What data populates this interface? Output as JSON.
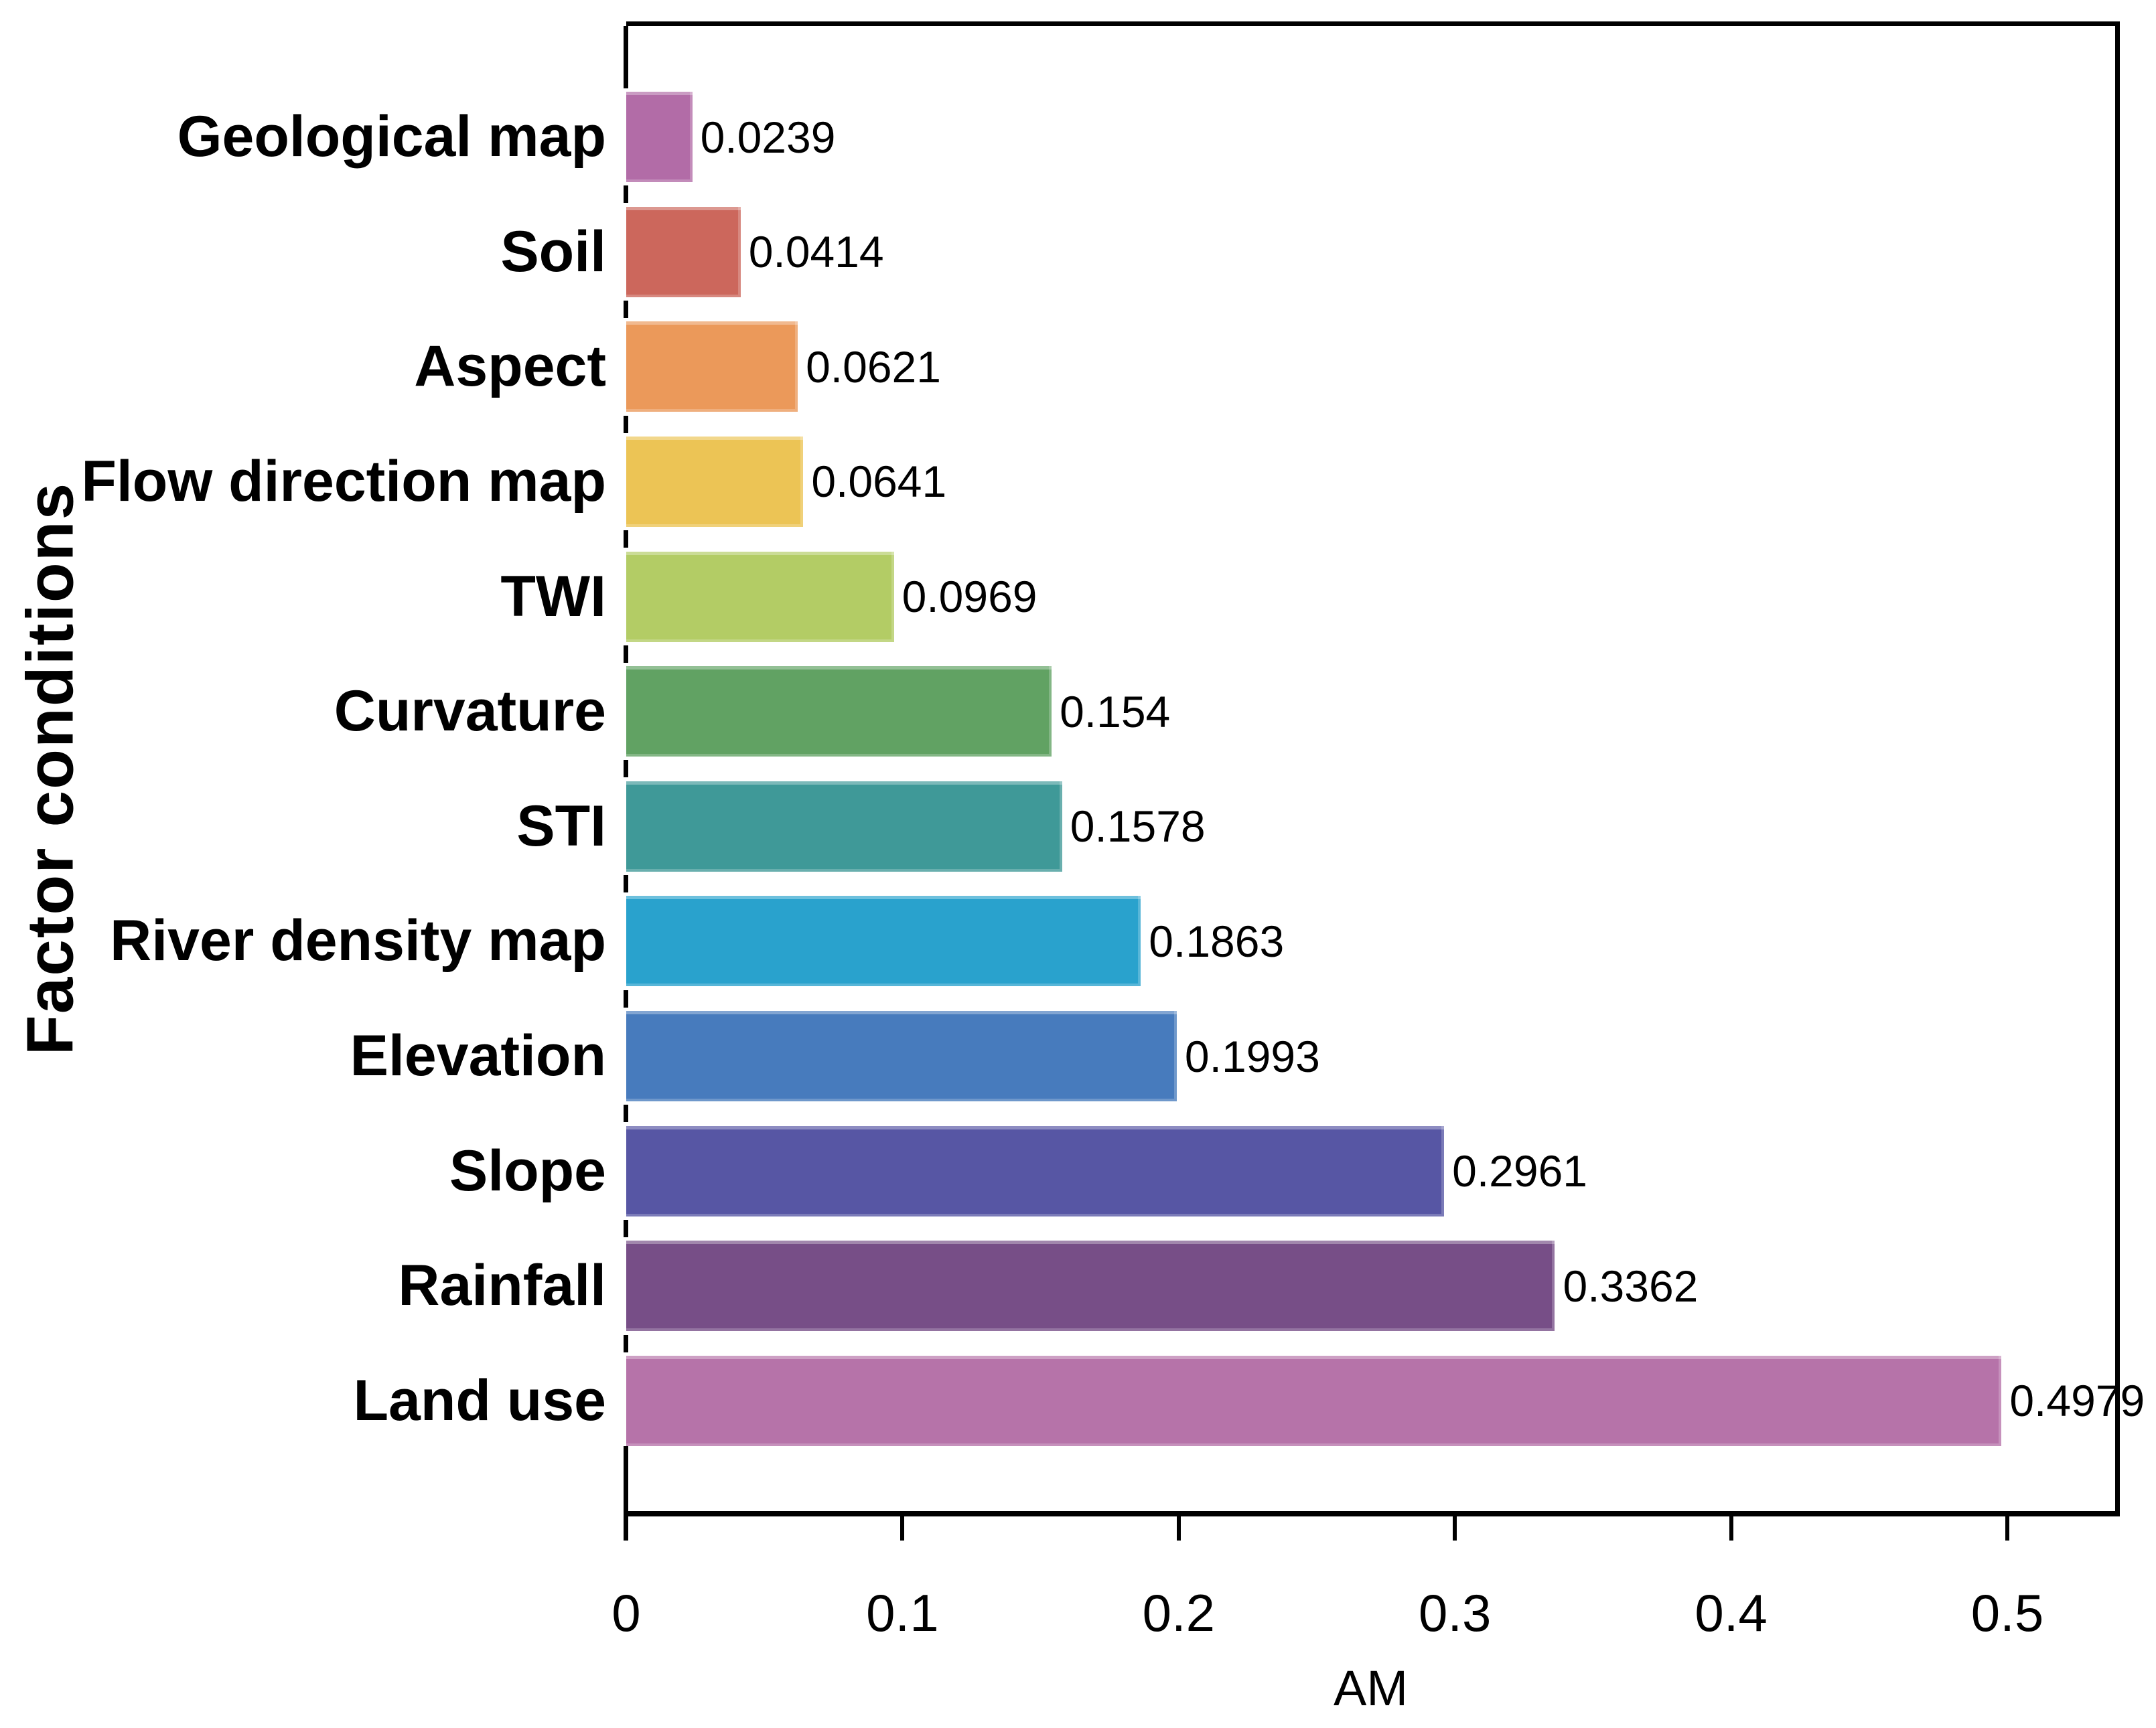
{
  "chart_data": {
    "type": "bar",
    "orientation": "horizontal",
    "title": "",
    "xlabel": "AM",
    "ylabel": "Factor conditions",
    "categories": [
      "Geological map",
      "Soil",
      "Aspect",
      "Flow direction map",
      "TWI",
      "Curvature",
      "STI",
      "River density map",
      "Elevation",
      "Slope",
      "Rainfall",
      "Land use"
    ],
    "values": [
      0.0239,
      0.0414,
      0.0621,
      0.0641,
      0.0969,
      0.154,
      0.1578,
      0.1863,
      0.1993,
      0.2961,
      0.3362,
      0.4979
    ],
    "value_labels": [
      "0.0239",
      "0.0414",
      "0.0621",
      "0.0641",
      "0.0969",
      "0.154",
      "0.1578",
      "0.1863",
      "0.1993",
      "0.2961",
      "0.3362",
      "0.4979"
    ],
    "bar_colors": [
      "#b26ca7",
      "#cc675c",
      "#eb995a",
      "#ecc455",
      "#b3cc65",
      "#61a263",
      "#3f9998",
      "#29a2cd",
      "#477bbd",
      "#5756a4",
      "#774e87",
      "#b673a9"
    ],
    "x_ticks": [
      "0",
      "0.1",
      "0.2",
      "0.3",
      "0.4",
      "0.5"
    ],
    "x_tick_values": [
      0,
      0.1,
      0.2,
      0.3,
      0.4,
      0.5
    ],
    "xlim": [
      0,
      0.542
    ],
    "grid": false,
    "legend_position": "none"
  },
  "axes": {
    "x_title": "AM",
    "y_title": "Factor conditions"
  },
  "colors": {
    "axis": "#000000",
    "text": "#000000",
    "background": "#ffffff"
  }
}
